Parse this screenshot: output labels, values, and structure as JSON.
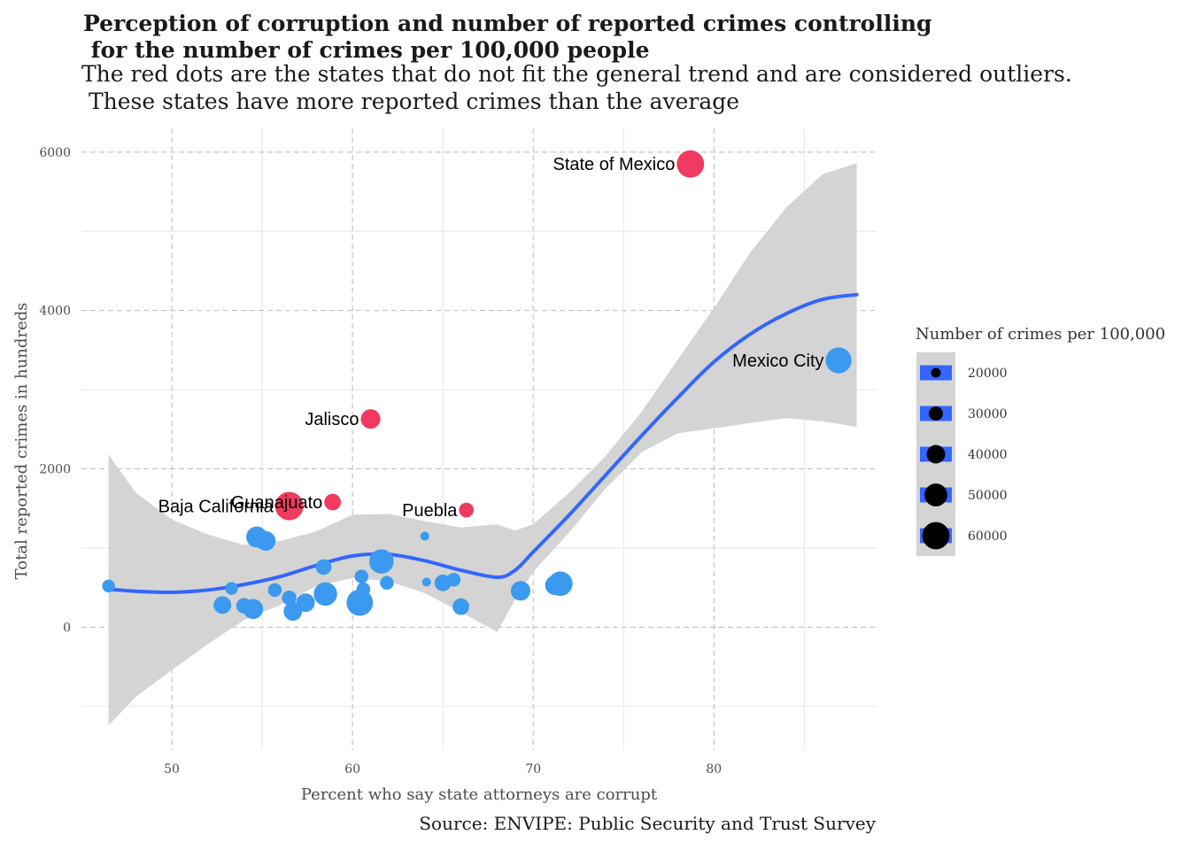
{
  "title": "Perception of corruption and number of reported crimes controlling\n for the number of crimes per 100,000 people",
  "subtitle": "The red dots are the states that do not fit the general trend and are considered outliers.\n These states have more reported crimes than the average",
  "caption": "Source: ENVIPE: Public Security and Trust Survey",
  "colors": {
    "outlier": "#F03A5F",
    "regular": "#3B9AEF",
    "smooth_line": "#3366FF",
    "ribbon": "#D4D4D4",
    "grid_major": "#BBBBBB",
    "grid_minor": "#E6E6E6"
  },
  "chart_data": {
    "type": "scatter",
    "title": "Perception of corruption and number of reported crimes controlling for the number of crimes per 100,000 people",
    "xlabel": "Percent who say state attorneys are corrupt",
    "ylabel": "Total reported crimes in hundreds",
    "xlim": [
      45,
      89
    ],
    "ylim": [
      -1550,
      6300
    ],
    "x_ticks": [
      50,
      60,
      70,
      80
    ],
    "y_ticks": [
      0,
      2000,
      4000,
      6000
    ],
    "grid": true,
    "legend": {
      "title": "Number of crimes per 100,000",
      "position": "right",
      "sizes": [
        20000,
        30000,
        40000,
        50000,
        60000
      ]
    },
    "size_range": [
      20000,
      60000
    ],
    "points": [
      {
        "x": 78.7,
        "y": 5850,
        "size": 58000,
        "group": "outlier",
        "label": "State of Mexico"
      },
      {
        "x": 86.9,
        "y": 3370,
        "size": 55000,
        "group": "regular",
        "label": "Mexico City"
      },
      {
        "x": 61.0,
        "y": 2630,
        "size": 42000,
        "group": "outlier",
        "label": "Jalisco"
      },
      {
        "x": 58.9,
        "y": 1580,
        "size": 36000,
        "group": "outlier",
        "label": "Guanajuato"
      },
      {
        "x": 56.5,
        "y": 1530,
        "size": 60000,
        "group": "outlier",
        "label": "Baja California"
      },
      {
        "x": 66.3,
        "y": 1480,
        "size": 32000,
        "group": "outlier",
        "label": "Puebla"
      },
      {
        "x": 46.5,
        "y": 520,
        "size": 28000,
        "group": "regular",
        "label": ""
      },
      {
        "x": 52.8,
        "y": 280,
        "size": 38000,
        "group": "regular",
        "label": ""
      },
      {
        "x": 53.3,
        "y": 490,
        "size": 28000,
        "group": "regular",
        "label": ""
      },
      {
        "x": 54.0,
        "y": 270,
        "size": 34000,
        "group": "regular",
        "label": ""
      },
      {
        "x": 54.5,
        "y": 230,
        "size": 43000,
        "group": "regular",
        "label": ""
      },
      {
        "x": 54.7,
        "y": 1140,
        "size": 45000,
        "group": "regular",
        "label": ""
      },
      {
        "x": 55.2,
        "y": 1090,
        "size": 42000,
        "group": "regular",
        "label": ""
      },
      {
        "x": 55.7,
        "y": 470,
        "size": 30000,
        "group": "regular",
        "label": ""
      },
      {
        "x": 56.5,
        "y": 370,
        "size": 32000,
        "group": "regular",
        "label": ""
      },
      {
        "x": 56.7,
        "y": 200,
        "size": 40000,
        "group": "regular",
        "label": ""
      },
      {
        "x": 57.4,
        "y": 310,
        "size": 40000,
        "group": "regular",
        "label": ""
      },
      {
        "x": 58.4,
        "y": 760,
        "size": 34000,
        "group": "regular",
        "label": ""
      },
      {
        "x": 58.5,
        "y": 420,
        "size": 50000,
        "group": "regular",
        "label": ""
      },
      {
        "x": 60.4,
        "y": 310,
        "size": 56000,
        "group": "regular",
        "label": ""
      },
      {
        "x": 60.5,
        "y": 640,
        "size": 30000,
        "group": "regular",
        "label": ""
      },
      {
        "x": 60.6,
        "y": 480,
        "size": 30000,
        "group": "regular",
        "label": ""
      },
      {
        "x": 61.6,
        "y": 830,
        "size": 52000,
        "group": "regular",
        "label": ""
      },
      {
        "x": 61.9,
        "y": 560,
        "size": 30000,
        "group": "regular",
        "label": ""
      },
      {
        "x": 64.0,
        "y": 1150,
        "size": 20000,
        "group": "regular",
        "label": ""
      },
      {
        "x": 64.1,
        "y": 570,
        "size": 20000,
        "group": "regular",
        "label": ""
      },
      {
        "x": 65.0,
        "y": 560,
        "size": 36000,
        "group": "regular",
        "label": ""
      },
      {
        "x": 65.6,
        "y": 600,
        "size": 30000,
        "group": "regular",
        "label": ""
      },
      {
        "x": 66.0,
        "y": 260,
        "size": 36000,
        "group": "regular",
        "label": ""
      },
      {
        "x": 69.3,
        "y": 460,
        "size": 42000,
        "group": "regular",
        "label": ""
      },
      {
        "x": 71.2,
        "y": 530,
        "size": 42000,
        "group": "regular",
        "label": ""
      },
      {
        "x": 71.5,
        "y": 550,
        "size": 52000,
        "group": "regular",
        "label": ""
      }
    ],
    "smooth": {
      "x": [
        46.5,
        48,
        50,
        52,
        54,
        56,
        58,
        60,
        62,
        64,
        66,
        68,
        69,
        70,
        72,
        74,
        76,
        78,
        80,
        82,
        84,
        86,
        87.9
      ],
      "y": [
        480,
        455,
        440,
        470,
        540,
        640,
        780,
        900,
        920,
        840,
        720,
        630,
        720,
        950,
        1420,
        1920,
        2420,
        2900,
        3350,
        3700,
        3960,
        4140,
        4200
      ],
      "lower": [
        -1240,
        -880,
        -540,
        -210,
        90,
        280,
        520,
        620,
        580,
        430,
        190,
        -60,
        350,
        700,
        1200,
        1750,
        2210,
        2450,
        2510,
        2580,
        2640,
        2600,
        2530
      ],
      "upper": [
        2180,
        1700,
        1360,
        1170,
        1040,
        1090,
        1210,
        1420,
        1430,
        1340,
        1260,
        1300,
        1220,
        1300,
        1700,
        2160,
        2720,
        3380,
        4030,
        4730,
        5300,
        5720,
        5860
      ]
    }
  }
}
